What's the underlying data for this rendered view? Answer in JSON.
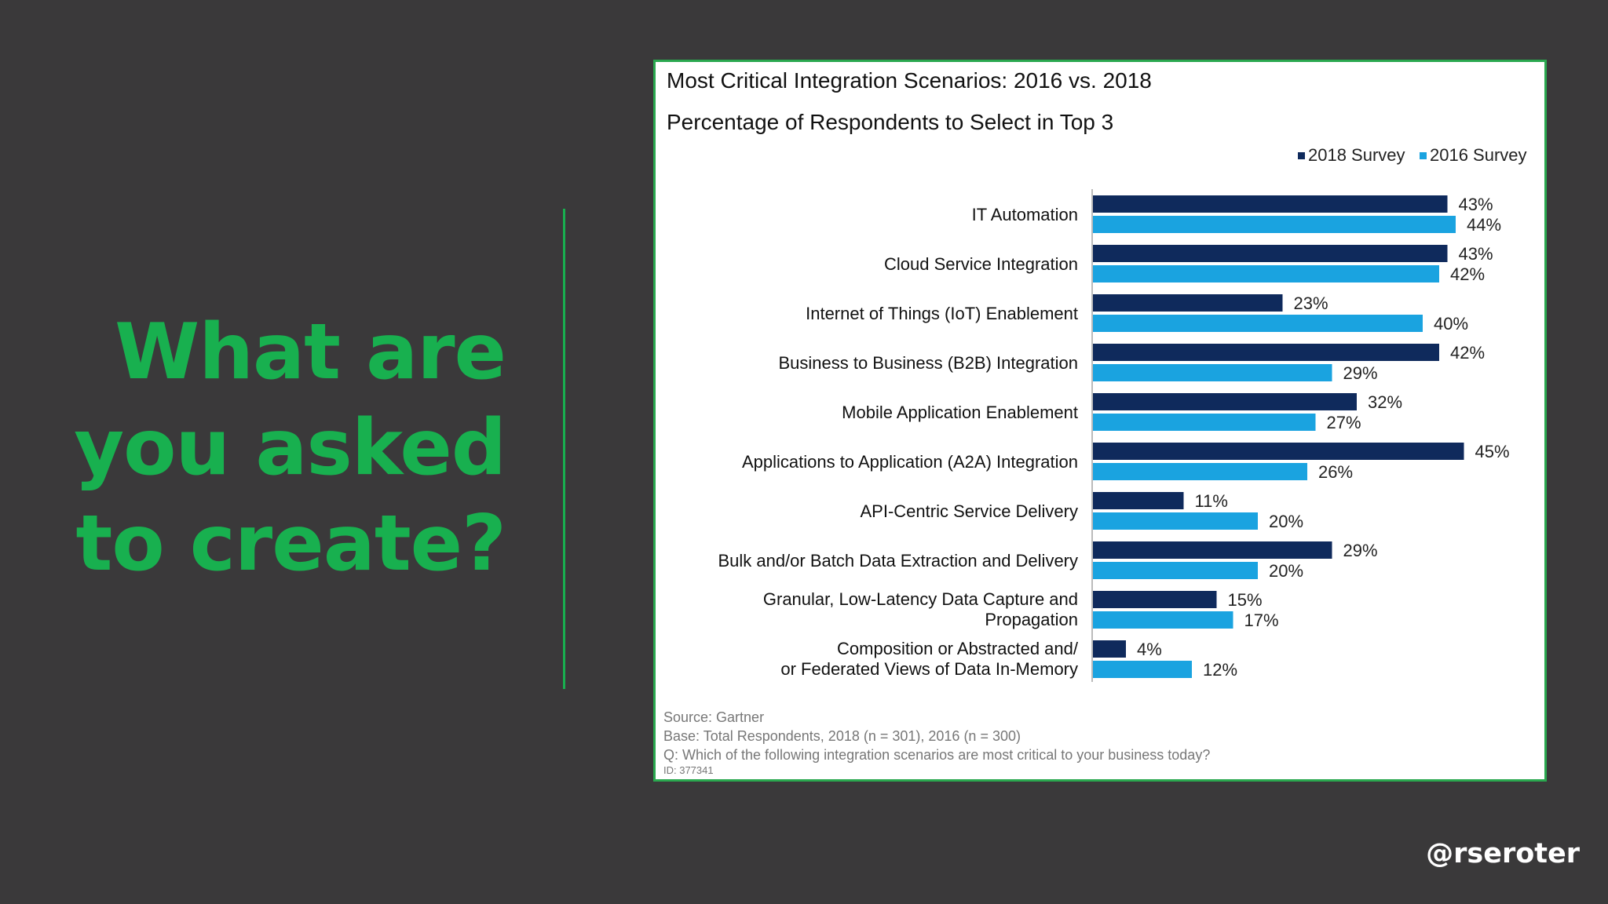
{
  "slide": {
    "headline_lines": [
      "What are",
      "you asked",
      "to create?"
    ],
    "handle": "@rseroter",
    "accent_color": "#18b04f",
    "background_color": "#3a393a"
  },
  "chart_data": {
    "type": "bar",
    "orientation": "horizontal",
    "title": "Most Critical Integration Scenarios: 2016 vs. 2018",
    "subtitle": "Percentage of Respondents to Select in Top 3",
    "categories": [
      [
        "IT Automation"
      ],
      [
        "Cloud Service Integration"
      ],
      [
        "Internet of Things (IoT) Enablement"
      ],
      [
        "Business to Business (B2B) Integration"
      ],
      [
        "Mobile Application Enablement"
      ],
      [
        "Applications to Application (A2A) Integration"
      ],
      [
        "API-Centric Service Delivery"
      ],
      [
        "Bulk and/or Batch Data Extraction and Delivery"
      ],
      [
        "Granular, Low-Latency Data Capture and",
        "Propagation"
      ],
      [
        "Composition or Abstracted and/",
        "or Federated Views of Data In-Memory"
      ]
    ],
    "series": [
      {
        "name": "2018 Survey",
        "color": "#0f2a5c",
        "values": [
          43,
          43,
          23,
          42,
          32,
          45,
          11,
          29,
          15,
          4
        ]
      },
      {
        "name": "2016 Survey",
        "color": "#1aa3e0",
        "values": [
          44,
          42,
          40,
          29,
          27,
          26,
          20,
          20,
          17,
          12
        ]
      }
    ],
    "value_suffix": "%",
    "xlim": [
      0,
      45
    ],
    "legend_position": "top-right",
    "grid": false,
    "footnotes": {
      "source": "Source: Gartner",
      "base": "Base: Total Respondents, 2018 (n = 301), 2016 (n = 300)",
      "question": "Q: Which of the following integration scenarios are most critical to your business today?",
      "id": "ID: 377341"
    }
  }
}
